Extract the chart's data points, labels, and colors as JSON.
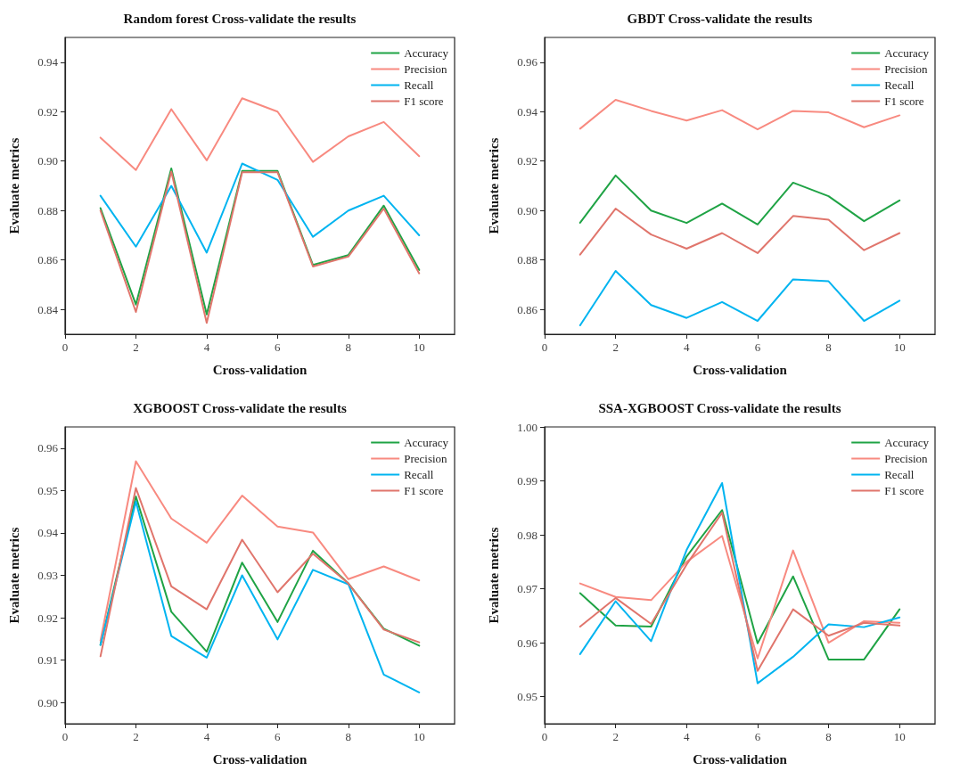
{
  "chart_data": [
    {
      "type": "line",
      "title": "Random forest Cross-validate the results",
      "xlabel": "Cross-validation",
      "ylabel": "Evaluate metrics",
      "x": [
        1,
        2,
        3,
        4,
        5,
        6,
        7,
        8,
        9,
        10
      ],
      "xlim": [
        0,
        11
      ],
      "xticks": [
        0,
        2,
        4,
        6,
        8,
        10
      ],
      "ylim": [
        0.83,
        0.95
      ],
      "yticks": [
        0.84,
        0.86,
        0.88,
        {
          "value": 0.9,
          "label": "0.90"
        },
        0.92,
        0.94
      ],
      "legend": "top right",
      "grid": false,
      "marker": "none",
      "line_style": "solid",
      "series": [
        {
          "name": "Accuracy",
          "color": "#1fa345",
          "values": [
            0.881,
            0.842,
            0.897,
            0.838,
            0.896,
            0.896,
            0.858,
            0.862,
            0.882,
            0.856
          ]
        },
        {
          "name": "Precision",
          "color": "#f88a80",
          "values": [
            0.9095,
            0.8964,
            0.921,
            0.9003,
            0.9254,
            0.92,
            0.8997,
            0.91,
            0.9158,
            0.902
          ]
        },
        {
          "name": "Recall",
          "color": "#00b4f0",
          "values": [
            0.886,
            0.8654,
            0.89,
            0.863,
            0.899,
            0.8924,
            0.8694,
            0.88,
            0.886,
            0.87
          ]
        },
        {
          "name": "F1 score",
          "color": "#e0756c",
          "values": [
            0.88,
            0.839,
            0.8958,
            0.8346,
            0.8955,
            0.8955,
            0.8574,
            0.8614,
            0.8808,
            0.8546
          ]
        }
      ]
    },
    {
      "type": "line",
      "title": "GBDT Cross-validate the results",
      "xlabel": "Cross-validation",
      "ylabel": "Evaluate metrics",
      "x": [
        1,
        2,
        3,
        4,
        5,
        6,
        7,
        8,
        9,
        10
      ],
      "xlim": [
        0,
        11
      ],
      "xticks": [
        0,
        2,
        4,
        6,
        8,
        10
      ],
      "ylim": [
        0.85,
        0.97
      ],
      "yticks": [
        {
          "value": 0.86,
          "label": "0.86"
        },
        {
          "value": 0.88,
          "label": "0.88"
        },
        {
          "value": 0.9,
          "label": "0.90"
        },
        {
          "value": 0.92,
          "label": "0.92"
        },
        {
          "value": 0.94,
          "label": "0.94"
        },
        {
          "value": 0.96,
          "label": "0.96"
        }
      ],
      "legend": "top right",
      "grid": false,
      "marker": "none",
      "line_style": "solid",
      "series": [
        {
          "name": "Accuracy",
          "color": "#1fa345",
          "values": [
            0.8951,
            0.9142,
            0.9,
            0.895,
            0.9028,
            0.8944,
            0.9113,
            0.9058,
            0.8957,
            0.9041
          ]
        },
        {
          "name": "Precision",
          "color": "#f88a80",
          "values": [
            0.9331,
            0.9448,
            0.9403,
            0.9364,
            0.9406,
            0.9328,
            0.9403,
            0.9397,
            0.9337,
            0.9385
          ]
        },
        {
          "name": "Recall",
          "color": "#00b4f0",
          "values": [
            0.8536,
            0.8756,
            0.8618,
            0.8566,
            0.863,
            0.8554,
            0.8722,
            0.8714,
            0.8554,
            0.8636
          ]
        },
        {
          "name": "F1 score",
          "color": "#e0756c",
          "values": [
            0.8822,
            0.9008,
            0.8903,
            0.8846,
            0.8909,
            0.8828,
            0.8978,
            0.8963,
            0.884,
            0.8909
          ]
        }
      ]
    },
    {
      "type": "line",
      "title": "XGBOOST Cross-validate the results",
      "xlabel": "Cross-validation",
      "ylabel": "Evaluate metrics",
      "x": [
        1,
        2,
        3,
        4,
        5,
        6,
        7,
        8,
        9,
        10
      ],
      "xlim": [
        0,
        11
      ],
      "xticks": [
        0,
        2,
        4,
        6,
        8,
        10
      ],
      "ylim": [
        0.895,
        0.965
      ],
      "yticks": [
        {
          "value": 0.9,
          "label": "0.90"
        },
        {
          "value": 0.91,
          "label": "0.91"
        },
        {
          "value": 0.92,
          "label": "0.92"
        },
        {
          "value": 0.93,
          "label": "0.93"
        },
        {
          "value": 0.94,
          "label": "0.94"
        },
        {
          "value": 0.95,
          "label": "0.95"
        },
        {
          "value": 0.96,
          "label": "0.96"
        }
      ],
      "legend": "top right",
      "grid": false,
      "marker": "none",
      "line_style": "solid",
      "series": [
        {
          "name": "Accuracy",
          "color": "#1fa345",
          "values": [
            0.9136,
            0.9486,
            0.9214,
            0.912,
            0.933,
            0.919,
            0.9358,
            0.9281,
            0.9174,
            0.9134
          ]
        },
        {
          "name": "Precision",
          "color": "#f88a80",
          "values": [
            0.9146,
            0.9569,
            0.9434,
            0.9377,
            0.9488,
            0.9415,
            0.9401,
            0.9291,
            0.9321,
            0.9288
          ]
        },
        {
          "name": "Recall",
          "color": "#00b4f0",
          "values": [
            0.9136,
            0.9474,
            0.9157,
            0.9106,
            0.93,
            0.9149,
            0.9313,
            0.9279,
            0.9066,
            0.9024
          ]
        },
        {
          "name": "F1 score",
          "color": "#e0756c",
          "values": [
            0.9109,
            0.9506,
            0.9274,
            0.922,
            0.9384,
            0.926,
            0.9351,
            0.9281,
            0.9172,
            0.9142
          ]
        }
      ]
    },
    {
      "type": "line",
      "title": "SSA-XGBOOST Cross-validate the results",
      "xlabel": "Cross-validation",
      "ylabel": "Evaluate metrics",
      "x": [
        1,
        2,
        3,
        4,
        5,
        6,
        7,
        8,
        9,
        10
      ],
      "xlim": [
        0,
        11
      ],
      "xticks": [
        0,
        2,
        4,
        6,
        8,
        10
      ],
      "ylim": [
        0.945,
        1.0
      ],
      "yticks": [
        0.95,
        0.96,
        0.97,
        0.98,
        0.99,
        {
          "value": 1.0,
          "label": "1.00"
        }
      ],
      "legend": "top right",
      "grid": false,
      "marker": "none",
      "line_style": "solid",
      "series": [
        {
          "name": "Accuracy",
          "color": "#1fa345",
          "values": [
            0.9692,
            0.9632,
            0.963,
            0.976,
            0.9846,
            0.9599,
            0.9723,
            0.9569,
            0.9569,
            0.9662
          ]
        },
        {
          "name": "Precision",
          "color": "#f88a80",
          "values": [
            0.971,
            0.9685,
            0.9679,
            0.975,
            0.9798,
            0.9571,
            0.9771,
            0.96,
            0.964,
            0.9637
          ]
        },
        {
          "name": "Recall",
          "color": "#00b4f0",
          "values": [
            0.9579,
            0.9677,
            0.9603,
            0.9772,
            0.9896,
            0.9525,
            0.9574,
            0.9634,
            0.9629,
            0.9647
          ]
        },
        {
          "name": "F1 score",
          "color": "#e0756c",
          "values": [
            0.963,
            0.9683,
            0.9635,
            0.9745,
            0.9841,
            0.9548,
            0.9662,
            0.9613,
            0.9637,
            0.9632
          ]
        }
      ]
    }
  ]
}
